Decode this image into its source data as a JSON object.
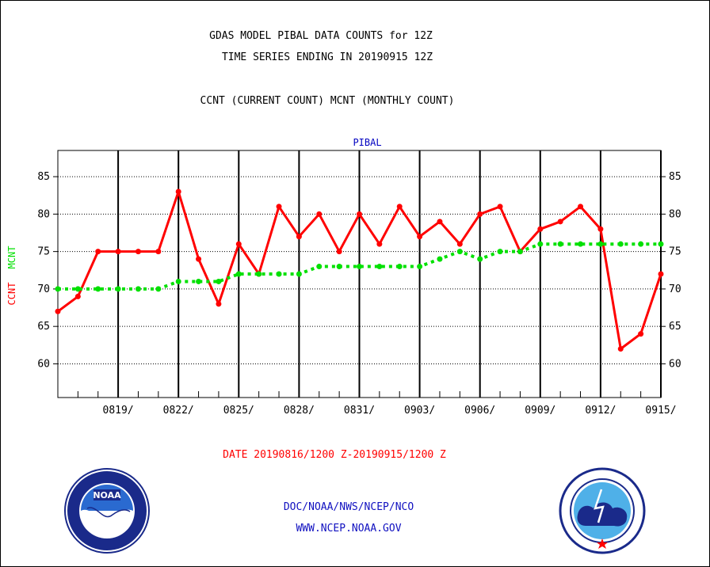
{
  "header": {
    "title_line1": "GDAS MODEL PIBAL DATA COUNTS for 12Z",
    "title_line2": "TIME SERIES ENDING IN 20190915 12Z",
    "subtitle": "CCNT (CURRENT COUNT) MCNT (MONTHLY COUNT)"
  },
  "footer": {
    "date_range": "DATE 20190816/1200 Z-20190915/1200 Z",
    "org": "DOC/NOAA/NWS/NCEP/NCO",
    "url": "WWW.NCEP.NOAA.GOV"
  },
  "logos": {
    "left": "noaa-logo",
    "right": "national-weather-service-logo"
  },
  "colors": {
    "ccnt": "#ff0000",
    "mcnt": "#00e000",
    "pibal_label": "#0000c0",
    "footer_text": "#1010c0"
  },
  "chart_data": {
    "type": "line",
    "title": "PIBAL",
    "ylabel_ccnt": "CCNT",
    "ylabel_mcnt": "MCNT",
    "ylim": [
      55.5,
      88.5
    ],
    "yticks": [
      60,
      65,
      70,
      75,
      80,
      85
    ],
    "x": [
      "0816",
      "0817",
      "0818",
      "0819",
      "0820",
      "0821",
      "0822",
      "0823",
      "0824",
      "0825",
      "0826",
      "0827",
      "0828",
      "0829",
      "0830",
      "0831",
      "0901",
      "0902",
      "0903",
      "0904",
      "0905",
      "0906",
      "0907",
      "0908",
      "0909",
      "0910",
      "0911",
      "0912",
      "0913",
      "0914",
      "0915"
    ],
    "xtick_labels": [
      "0819/",
      "0822/",
      "0825/",
      "0828/",
      "0831/",
      "0903/",
      "0906/",
      "0909/",
      "0912/",
      "0915/"
    ],
    "xtick_dates": [
      "0819",
      "0822",
      "0825",
      "0828",
      "0831",
      "0903",
      "0906",
      "0909",
      "0912",
      "0915"
    ],
    "grid": true,
    "series": [
      {
        "name": "CCNT",
        "values": [
          67,
          69,
          75,
          75,
          75,
          75,
          83,
          74,
          68,
          76,
          72,
          81,
          77,
          80,
          75,
          80,
          76,
          81,
          77,
          79,
          76,
          80,
          81,
          75,
          78,
          79,
          81,
          78,
          62,
          64,
          72
        ]
      },
      {
        "name": "MCNT",
        "values": [
          70,
          70,
          70,
          70,
          70,
          70,
          71,
          71,
          71,
          72,
          72,
          72,
          72,
          73,
          73,
          73,
          73,
          73,
          73,
          74,
          75,
          74,
          75,
          75,
          76,
          76,
          76,
          76,
          76,
          76,
          76
        ]
      }
    ]
  }
}
